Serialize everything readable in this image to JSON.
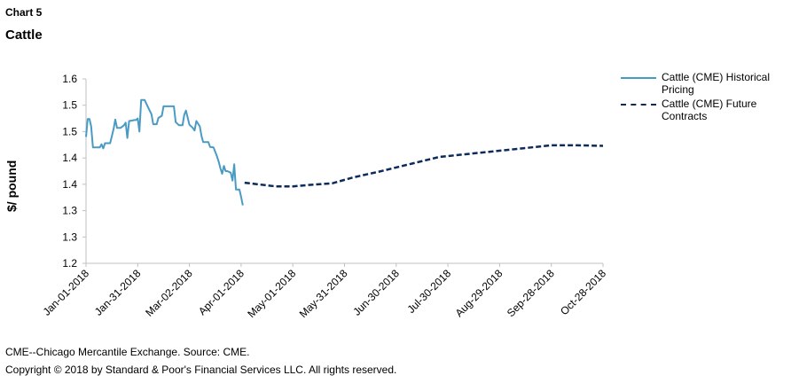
{
  "header": {
    "chart_number": "Chart 5",
    "title": "Cattle"
  },
  "footer": {
    "note": "CME--Chicago Mercantile Exchange. Source: CME.",
    "copyright": "Copyright © 2018 by Standard & Poor's Financial Services LLC. All rights reserved."
  },
  "colors": {
    "historical": "#4a9bc4",
    "futures": "#0d2b5a",
    "axis": "#c0c0c0"
  },
  "chart_data": {
    "type": "line",
    "title": "Cattle",
    "xlabel": "",
    "ylabel": "$/ pound",
    "x_ticks": [
      "Jan-01-2018",
      "Jan-31-2018",
      "Mar-02-2018",
      "Apr-01-2018",
      "May-01-2018",
      "May-31-2018",
      "Jun-30-2018",
      "Jul-30-2018",
      "Aug-29-2018",
      "Sep-28-2018",
      "Oct-28-2018"
    ],
    "y_ticks": [
      "1.6",
      "1.5",
      "1.5",
      "1.4",
      "1.4",
      "1.3",
      "1.3",
      "1.2"
    ],
    "ylim": [
      1.2,
      1.55
    ],
    "xlim_days": [
      0,
      300
    ],
    "legend_position": "right",
    "grid": false,
    "series": [
      {
        "name": "Cattle (CME) Historical Pricing",
        "style": "solid",
        "points": [
          [
            0,
            1.44
          ],
          [
            1,
            1.474
          ],
          [
            2,
            1.474
          ],
          [
            3,
            1.46
          ],
          [
            4,
            1.42
          ],
          [
            6,
            1.42
          ],
          [
            8,
            1.42
          ],
          [
            9,
            1.426
          ],
          [
            10,
            1.418
          ],
          [
            11,
            1.428
          ],
          [
            13,
            1.428
          ],
          [
            14,
            1.428
          ],
          [
            16,
            1.455
          ],
          [
            17,
            1.473
          ],
          [
            18,
            1.457
          ],
          [
            20,
            1.457
          ],
          [
            22,
            1.462
          ],
          [
            23,
            1.467
          ],
          [
            24,
            1.438
          ],
          [
            25,
            1.47
          ],
          [
            27,
            1.471
          ],
          [
            28,
            1.472
          ],
          [
            29,
            1.472
          ],
          [
            30,
            1.475
          ],
          [
            31,
            1.45
          ],
          [
            32,
            1.51
          ],
          [
            34,
            1.51
          ],
          [
            36,
            1.496
          ],
          [
            38,
            1.483
          ],
          [
            39,
            1.464
          ],
          [
            41,
            1.464
          ],
          [
            42,
            1.476
          ],
          [
            44,
            1.48
          ],
          [
            45,
            1.498
          ],
          [
            47,
            1.498
          ],
          [
            49,
            1.498
          ],
          [
            51,
            1.498
          ],
          [
            52,
            1.468
          ],
          [
            54,
            1.462
          ],
          [
            56,
            1.462
          ],
          [
            57,
            1.482
          ],
          [
            58,
            1.49
          ],
          [
            60,
            1.463
          ],
          [
            62,
            1.457
          ],
          [
            63,
            1.452
          ],
          [
            64,
            1.47
          ],
          [
            66,
            1.46
          ],
          [
            67,
            1.442
          ],
          [
            68,
            1.43
          ],
          [
            71,
            1.43
          ],
          [
            72,
            1.421
          ],
          [
            74,
            1.42
          ],
          [
            76,
            1.403
          ],
          [
            77,
            1.393
          ],
          [
            78,
            1.38
          ],
          [
            79,
            1.37
          ],
          [
            80,
            1.385
          ],
          [
            81,
            1.375
          ],
          [
            82,
            1.375
          ],
          [
            84,
            1.372
          ],
          [
            85,
            1.357
          ],
          [
            86,
            1.388
          ],
          [
            87,
            1.34
          ],
          [
            89,
            1.34
          ],
          [
            90,
            1.326
          ],
          [
            91,
            1.31
          ]
        ],
        "labels": []
      },
      {
        "name": "Cattle (CME) Future Contracts",
        "style": "dashed",
        "points": [
          [
            92,
            1.353
          ],
          [
            100,
            1.35
          ],
          [
            110,
            1.346
          ],
          [
            120,
            1.346
          ],
          [
            130,
            1.349
          ],
          [
            143,
            1.352
          ],
          [
            155,
            1.363
          ],
          [
            170,
            1.374
          ],
          [
            190,
            1.39
          ],
          [
            205,
            1.402
          ],
          [
            220,
            1.407
          ],
          [
            235,
            1.412
          ],
          [
            250,
            1.417
          ],
          [
            270,
            1.424
          ],
          [
            285,
            1.424
          ],
          [
            300,
            1.423
          ]
        ],
        "labels": []
      }
    ]
  }
}
